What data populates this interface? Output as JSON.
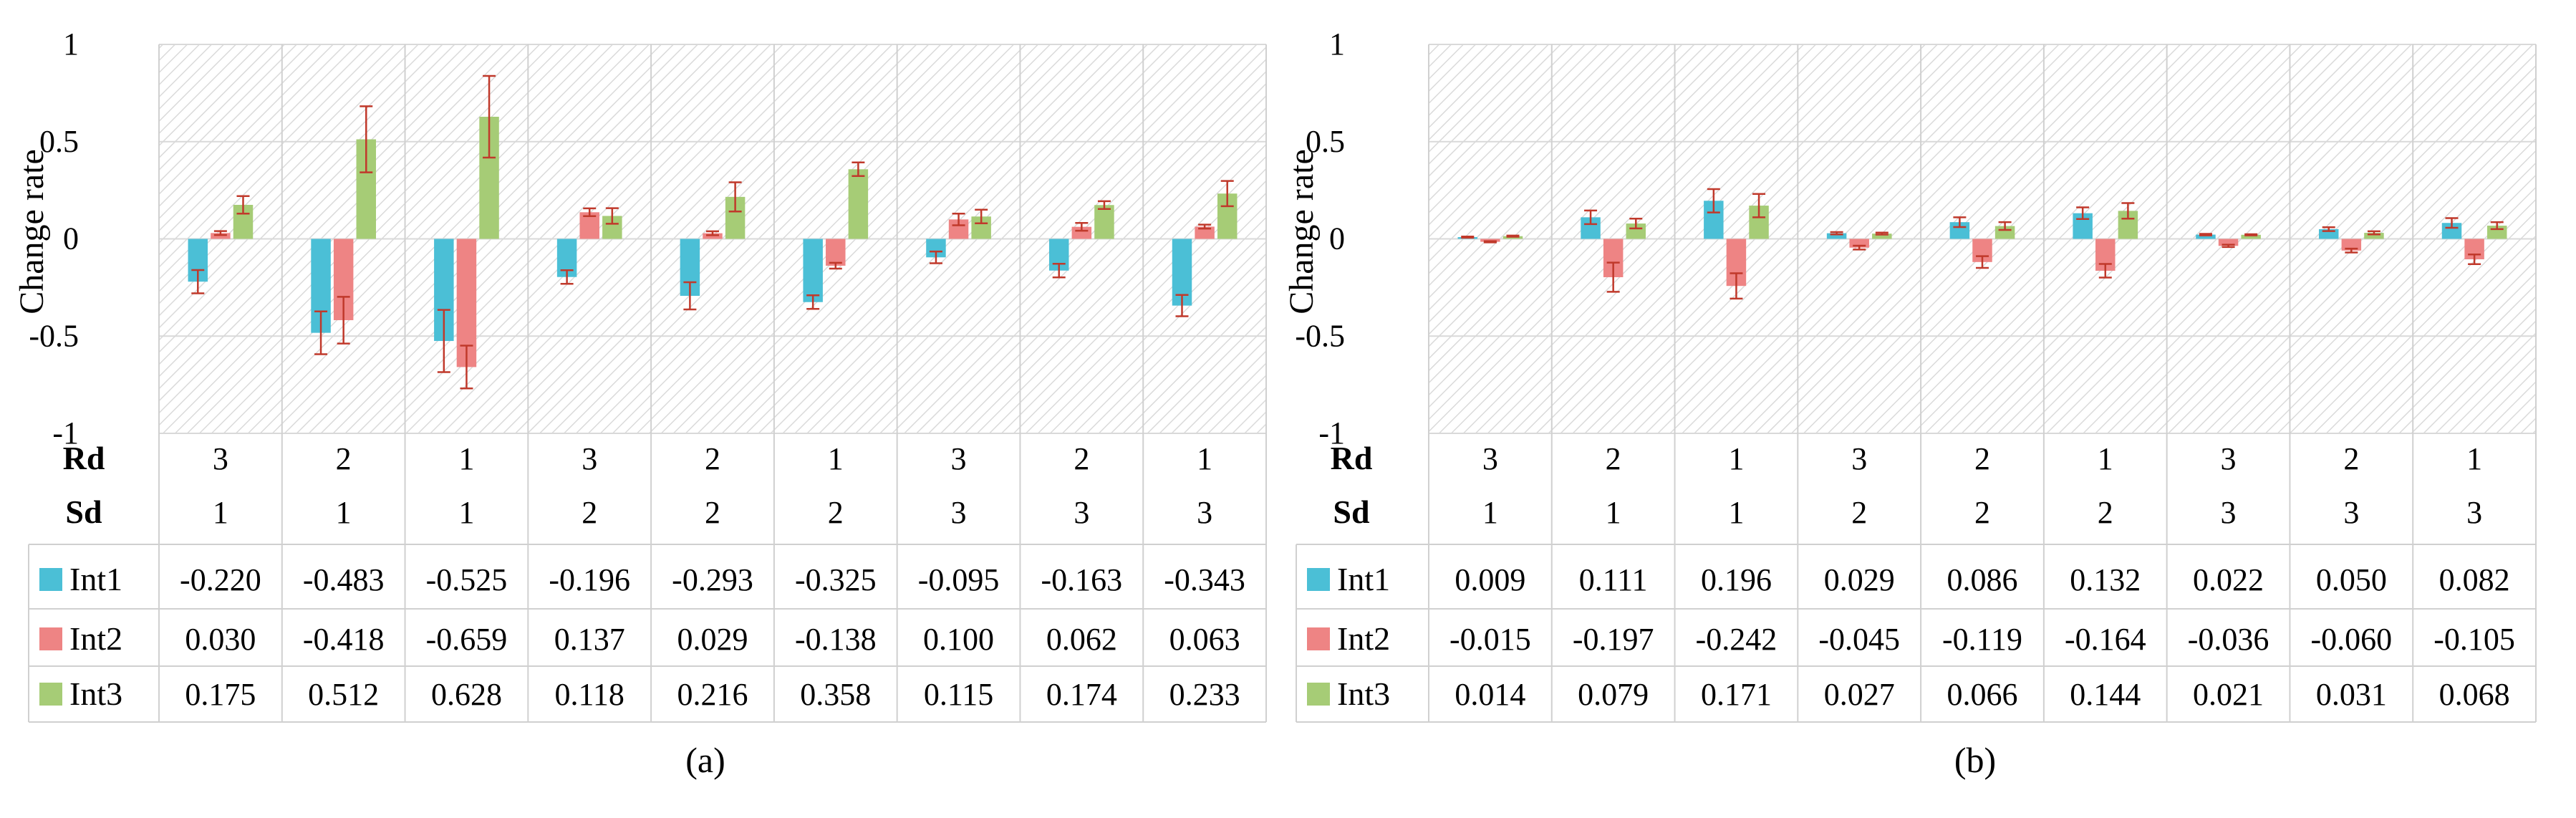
{
  "colors": {
    "Int1": "#4BBFD6",
    "Int2": "#EE8484",
    "Int3": "#A6CC76",
    "error_bar": "#C0392B",
    "plot_bg_hatch": "#D9D9D9",
    "table_line": "#D0D0D0"
  },
  "chart_data": [
    {
      "type": "bar",
      "panel": "a",
      "caption": "(a)",
      "ylabel": "Change rate",
      "ylim": [
        -1,
        1
      ],
      "yticks": [
        "1",
        "0.5",
        "0",
        "-0.5",
        "-1"
      ],
      "ytick_values": [
        1,
        0.5,
        0,
        -0.5,
        -1
      ],
      "row_labels": [
        "Rd",
        "Sd"
      ],
      "Rd": [
        "3",
        "2",
        "1",
        "3",
        "2",
        "1",
        "3",
        "2",
        "1"
      ],
      "Sd": [
        "1",
        "1",
        "1",
        "2",
        "2",
        "2",
        "3",
        "3",
        "3"
      ],
      "series": [
        {
          "name": "Int1",
          "values": [
            -0.22,
            -0.483,
            -0.525,
            -0.196,
            -0.293,
            -0.325,
            -0.095,
            -0.163,
            -0.343
          ],
          "labels": [
            "-0.220",
            "-0.483",
            "-0.525",
            "-0.196",
            "-0.293",
            "-0.325",
            "-0.095",
            "-0.163",
            "-0.343"
          ],
          "errors": [
            0.06,
            0.11,
            0.16,
            0.035,
            0.07,
            0.035,
            0.03,
            0.035,
            0.055
          ]
        },
        {
          "name": "Int2",
          "values": [
            0.03,
            -0.418,
            -0.659,
            0.137,
            0.029,
            -0.138,
            0.1,
            0.062,
            0.063
          ],
          "labels": [
            "0.030",
            "-0.418",
            "-0.659",
            "0.137",
            "0.029",
            "-0.138",
            "0.100",
            "0.062",
            "0.063"
          ],
          "errors": [
            0.01,
            0.12,
            0.11,
            0.02,
            0.01,
            0.015,
            0.03,
            0.02,
            0.01
          ]
        },
        {
          "name": "Int3",
          "values": [
            0.175,
            0.512,
            0.628,
            0.118,
            0.216,
            0.358,
            0.115,
            0.174,
            0.233
          ],
          "labels": [
            "0.175",
            "0.512",
            "0.628",
            "0.118",
            "0.216",
            "0.358",
            "0.115",
            "0.174",
            "0.233"
          ],
          "errors": [
            0.045,
            0.17,
            0.21,
            0.04,
            0.075,
            0.035,
            0.035,
            0.02,
            0.065
          ]
        }
      ]
    },
    {
      "type": "bar",
      "panel": "b",
      "caption": "(b)",
      "ylabel": "Change rate",
      "ylim": [
        -1,
        1
      ],
      "yticks": [
        "1",
        "0.5",
        "0",
        "-0.5",
        "-1"
      ],
      "ytick_values": [
        1,
        0.5,
        0,
        -0.5,
        -1
      ],
      "row_labels": [
        "Rd",
        "Sd"
      ],
      "Rd": [
        "3",
        "2",
        "1",
        "3",
        "2",
        "1",
        "3",
        "2",
        "1"
      ],
      "Sd": [
        "1",
        "1",
        "1",
        "2",
        "2",
        "2",
        "3",
        "3",
        "3"
      ],
      "series": [
        {
          "name": "Int1",
          "values": [
            0.009,
            0.111,
            0.196,
            0.029,
            0.086,
            0.132,
            0.022,
            0.05,
            0.082
          ],
          "labels": [
            "0.009",
            "0.111",
            "0.196",
            "0.029",
            "0.086",
            "0.132",
            "0.022",
            "0.050",
            "0.082"
          ],
          "errors": [
            0.003,
            0.035,
            0.06,
            0.006,
            0.025,
            0.03,
            0.004,
            0.01,
            0.025
          ]
        },
        {
          "name": "Int2",
          "values": [
            -0.015,
            -0.197,
            -0.242,
            -0.045,
            -0.119,
            -0.164,
            -0.036,
            -0.06,
            -0.105
          ],
          "labels": [
            "-0.015",
            "-0.197",
            "-0.242",
            "-0.045",
            "-0.119",
            "-0.164",
            "-0.036",
            "-0.060",
            "-0.105"
          ],
          "errors": [
            0.003,
            0.075,
            0.065,
            0.01,
            0.03,
            0.035,
            0.006,
            0.01,
            0.025
          ]
        },
        {
          "name": "Int3",
          "values": [
            0.014,
            0.079,
            0.171,
            0.027,
            0.066,
            0.144,
            0.021,
            0.031,
            0.068
          ],
          "labels": [
            "0.014",
            "0.079",
            "0.171",
            "0.027",
            "0.066",
            "0.144",
            "0.021",
            "0.031",
            "0.068"
          ],
          "errors": [
            0.003,
            0.025,
            0.06,
            0.005,
            0.02,
            0.04,
            0.003,
            0.008,
            0.018
          ]
        }
      ]
    }
  ]
}
